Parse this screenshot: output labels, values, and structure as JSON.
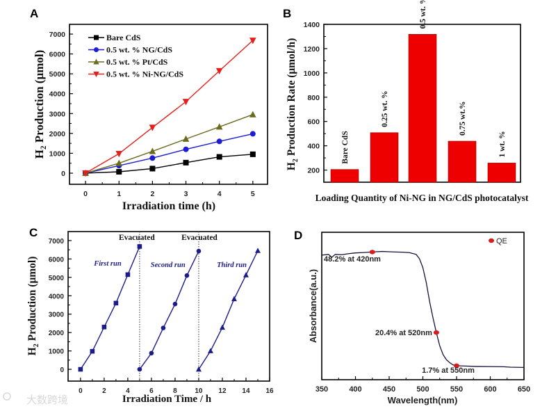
{
  "chart_data": [
    {
      "panel": "A",
      "type": "line",
      "xlabel": "Irradiation time (h)",
      "ylabel": "H2 Production (μmol)",
      "xlim": [
        -0.48,
        5.44
      ],
      "ylim": [
        -560,
        7490
      ],
      "xticks": [
        0,
        1,
        2,
        3,
        4,
        5
      ],
      "yticks": [
        0,
        1000,
        2000,
        3000,
        4000,
        5000,
        6000,
        7000
      ],
      "legend_position": "top-left",
      "x": [
        0,
        1,
        2,
        3,
        4,
        5
      ],
      "series": [
        {
          "name": "Bare CdS",
          "color": "#000000",
          "marker": "square",
          "values": [
            0,
            70,
            230,
            530,
            820,
            950
          ]
        },
        {
          "name": "0.5 wt. % NG/CdS",
          "color": "#1c1cd6",
          "marker": "circle",
          "values": [
            0,
            380,
            760,
            1200,
            1600,
            1980
          ]
        },
        {
          "name": "0.5 wt. % Pt/CdS",
          "color": "#6b6b1e",
          "marker": "triangle-up",
          "values": [
            0,
            500,
            1100,
            1720,
            2330,
            2950
          ]
        },
        {
          "name": "0.5 wt. % Ni-NG/CdS",
          "color": "#e3201b",
          "marker": "triangle-down",
          "values": [
            0,
            980,
            2300,
            3600,
            5150,
            6680
          ]
        }
      ]
    },
    {
      "panel": "B",
      "type": "bar",
      "xlabel": "Loading Quantity of Ni-NG in NG/CdS photocatalyst",
      "ylabel": "H2 Production Rate (μmol/h)",
      "ylim": [
        100,
        1400
      ],
      "yticks": [
        200,
        400,
        600,
        800,
        1000,
        1200,
        1400
      ],
      "categories": [
        "Bare CdS",
        "0.25 wt. %",
        "0.5 wt. %",
        "0.75 wt.%",
        "1 wt. %"
      ],
      "values": [
        205,
        508,
        1318,
        438,
        258
      ],
      "color": "#ee0000"
    },
    {
      "panel": "C",
      "type": "line",
      "xlabel": "Irradiation Time / h",
      "ylabel": "H2 Production (μmol)",
      "xlim": [
        -1.05,
        16
      ],
      "ylim": [
        -640,
        7490
      ],
      "xticks": [
        0,
        2,
        4,
        6,
        8,
        10,
        12,
        14,
        16
      ],
      "yticks": [
        0,
        1000,
        2000,
        3000,
        4000,
        5000,
        6000,
        7000
      ],
      "color": "#1b1b8a",
      "series": [
        {
          "name": "First run",
          "marker": "square",
          "x": [
            0,
            1,
            2,
            3,
            4,
            5
          ],
          "values": [
            0,
            980,
            2300,
            3600,
            5150,
            6680
          ]
        },
        {
          "name": "Second run",
          "marker": "circle",
          "x": [
            5,
            6,
            7,
            8,
            9,
            10
          ],
          "values": [
            0,
            880,
            2250,
            3550,
            5100,
            6430
          ]
        },
        {
          "name": "Third run",
          "marker": "triangle-up",
          "x": [
            10,
            11,
            12,
            13,
            14,
            15
          ],
          "values": [
            0,
            1000,
            2280,
            3830,
            5130,
            6450
          ]
        }
      ],
      "annotations": [
        {
          "text": "Evacuated",
          "x": 5
        },
        {
          "text": "Evacuated",
          "x": 10
        }
      ]
    },
    {
      "panel": "D",
      "type": "line",
      "xlabel": "Wavelength(nm)",
      "ylabel": "Absorbance(a.u.)",
      "xlim": [
        350,
        650
      ],
      "ylim": [
        0,
        1
      ],
      "xticks": [
        350,
        400,
        450,
        500,
        550,
        600,
        650
      ],
      "curve_color": "#12123a",
      "curve": {
        "x": [
          350,
          360,
          365,
          370,
          380,
          390,
          400,
          410,
          420,
          430,
          440,
          450,
          460,
          470,
          480,
          490,
          495,
          500,
          505,
          510,
          515,
          520,
          525,
          530,
          535,
          540,
          545,
          550,
          560,
          580,
          600,
          620,
          630,
          650
        ],
        "y": [
          0.845,
          0.85,
          0.83,
          0.85,
          0.848,
          0.855,
          0.86,
          0.862,
          0.865,
          0.868,
          0.87,
          0.868,
          0.866,
          0.865,
          0.862,
          0.85,
          0.82,
          0.76,
          0.66,
          0.53,
          0.42,
          0.32,
          0.23,
          0.17,
          0.135,
          0.115,
          0.1,
          0.095,
          0.093,
          0.09,
          0.089,
          0.088,
          0.085,
          0.083
        ]
      },
      "qe_legend": "QE",
      "qe_color": "#d91b1b",
      "qe_points": [
        {
          "x": 425,
          "y": 0.866,
          "label": "48.2% at 420nm"
        },
        {
          "x": 520,
          "y": 0.32,
          "label": "20.4% at 520nm"
        },
        {
          "x": 550,
          "y": 0.095,
          "label": "1.7% at 550nm"
        }
      ]
    }
  ],
  "panel_labels": [
    "A",
    "B",
    "C",
    "D"
  ],
  "watermark": "大数跨境"
}
